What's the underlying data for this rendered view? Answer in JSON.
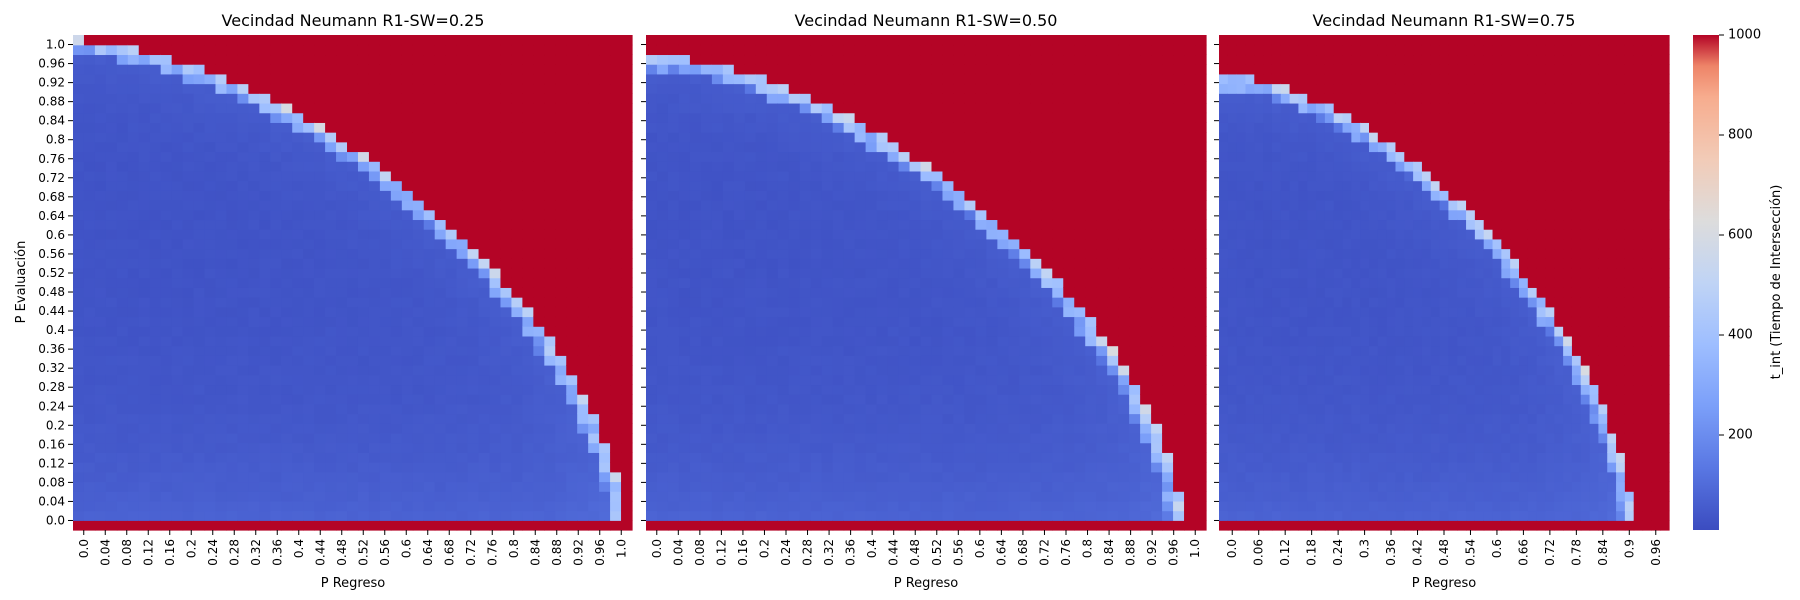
{
  "colorbar": {
    "label": "t_int (Tiempo de Intersección)",
    "min": 10,
    "max": 1000,
    "ticks": [
      200,
      400,
      600,
      800,
      1000
    ],
    "colormap": "coolwarm"
  },
  "chart_data": [
    {
      "type": "heatmap",
      "title": "Vecindad Neumann R1-SW=0.25",
      "xlabel": "P Regreso",
      "ylabel": "P Evaluación",
      "x_tick_labels": [
        "0.0",
        "0.04",
        "0.08",
        "0.12",
        "0.16",
        "0.2",
        "0.24",
        "0.28",
        "0.32",
        "0.36",
        "0.4",
        "0.44",
        "0.48",
        "0.52",
        "0.56",
        "0.6",
        "0.64",
        "0.68",
        "0.72",
        "0.76",
        "0.8",
        "0.84",
        "0.88",
        "0.92",
        "0.96",
        "1.0"
      ],
      "y_tick_labels": [
        "1.0",
        "0.96",
        "0.92",
        "0.88",
        "0.84",
        "0.8",
        "0.76",
        "0.72",
        "0.68",
        "0.64",
        "0.6",
        "0.56",
        "0.52",
        "0.48",
        "0.44",
        "0.4",
        "0.36",
        "0.32",
        "0.28",
        "0.24",
        "0.2",
        "0.16",
        "0.12",
        "0.08",
        "0.04",
        "0.0"
      ],
      "x_range": [
        0,
        1
      ],
      "y_range": [
        0,
        1
      ],
      "grid_steps": 51,
      "boundary_exponent": 1.6,
      "boundary_offset": 0.02,
      "boundary_scale": 1.0,
      "value_range": [
        10,
        1000
      ]
    },
    {
      "type": "heatmap",
      "title": "Vecindad Neumann R1-SW=0.50",
      "xlabel": "P Regreso",
      "ylabel": "",
      "x_tick_labels": [
        "0.0",
        "0.04",
        "0.08",
        "0.12",
        "0.16",
        "0.2",
        "0.24",
        "0.28",
        "0.32",
        "0.36",
        "0.4",
        "0.44",
        "0.48",
        "0.52",
        "0.56",
        "0.6",
        "0.64",
        "0.68",
        "0.72",
        "0.76",
        "0.8",
        "0.84",
        "0.88",
        "0.92",
        "0.96",
        "1.0"
      ],
      "y_tick_labels": [],
      "x_range": [
        0,
        1
      ],
      "y_range": [
        0,
        1
      ],
      "grid_steps": 51,
      "boundary_exponent": 1.6,
      "boundary_offset": 0.02,
      "boundary_scale": 0.97,
      "value_range": [
        10,
        1000
      ]
    },
    {
      "type": "heatmap",
      "title": "Vecindad Neumann R1-SW=0.75",
      "xlabel": "P Regreso",
      "ylabel": "",
      "x_tick_labels": [
        "0.0",
        "0.06",
        "0.12",
        "0.18",
        "0.24",
        "0.3",
        "0.36",
        "0.42",
        "0.48",
        "0.54",
        "0.6",
        "0.66",
        "0.72",
        "0.78",
        "0.84",
        "0.9",
        "0.96"
      ],
      "y_tick_labels": [],
      "x_range": [
        0,
        1
      ],
      "y_range": [
        0,
        1
      ],
      "grid_steps": 51,
      "boundary_exponent": 1.6,
      "boundary_offset": 0.02,
      "boundary_scale": 0.93,
      "value_range": [
        10,
        1000
      ]
    }
  ]
}
